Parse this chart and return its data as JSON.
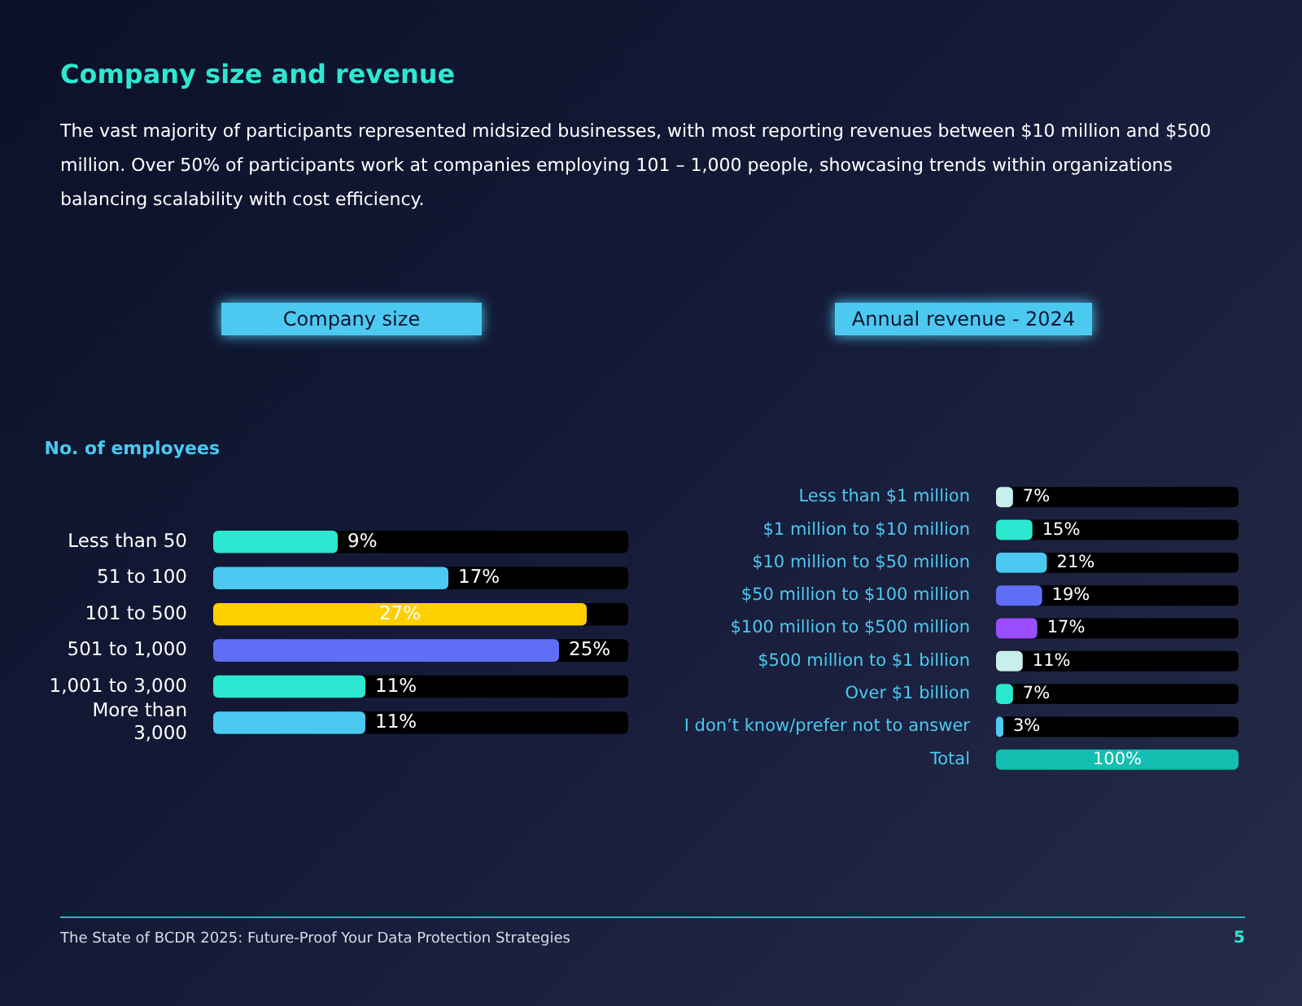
{
  "chart_data": [
    {
      "type": "bar",
      "orientation": "horizontal",
      "title": "Company size",
      "ylabel": "No. of employees",
      "annotations": [
        "Company size and revenue",
        "The vast majority of participants represented midsized businesses, with most reporting revenues between $10 million and $500 million. Over 50% of participants work at companies employing 101 – 1,000 people, showcasing trends within organizations balancing scalability with cost efficiency.",
        "The State of BCDR 2025: Future-Proof Your Data Protection Strategies",
        "5"
      ],
      "categories": [
        "Less than 50",
        "51 to 100",
        "101 to 500",
        "501 to 1,000",
        "1,001 to 3,000",
        "More than 3,000"
      ],
      "values": [
        9,
        17,
        27,
        25,
        11,
        11
      ],
      "colors": [
        "#2de8d0",
        "#4cc9f0",
        "#ffd000",
        "#5f6ff5",
        "#2de8d0",
        "#4cc9f0"
      ],
      "value_labels": [
        "9%",
        "17%",
        "27%",
        "25%",
        "11%",
        "11%"
      ]
    },
    {
      "type": "bar",
      "orientation": "horizontal",
      "title": "Annual revenue - 2024",
      "categories": [
        "Less than $1 million",
        "$1 million to $10 million",
        "$10 million to $50 million",
        "$50 million to $100 million",
        "$100 million to $500 million",
        "$500 million to $1 billion",
        "Over $1 billion",
        "I don’t know/prefer not to answer",
        "Total"
      ],
      "values": [
        7,
        15,
        21,
        19,
        17,
        11,
        7,
        3,
        100
      ],
      "colors": [
        "#c7f0ec",
        "#2de8d0",
        "#4cc9f0",
        "#5f6ff5",
        "#9a4dff",
        "#c7f0ec",
        "#2de8d0",
        "#4cc9f0",
        "#13bfb0"
      ],
      "value_labels": [
        "7%",
        "15%",
        "21%",
        "19%",
        "17%",
        "11%",
        "7%",
        "3%",
        "100%"
      ]
    }
  ]
}
